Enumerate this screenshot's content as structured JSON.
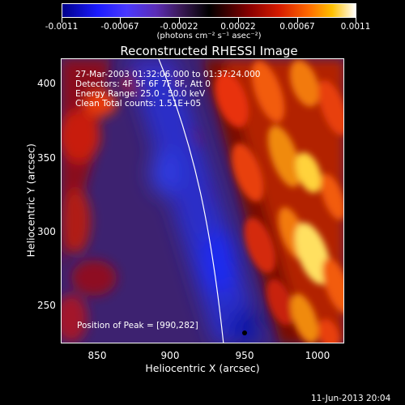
{
  "colorbar": {
    "tick_labels": [
      "-0.0011",
      "-0.00067",
      "-0.00022",
      "0.00022",
      "0.00067",
      "0.0011"
    ],
    "units": "(photons cm⁻² s⁻¹ asec⁻²)"
  },
  "title": "Reconstructed RHESSI Image",
  "info": {
    "time_range": "27-Mar-2003 01:32:06.000 to 01:37:24.000",
    "detectors": "Detectors: 4F 5F 6F 7F 8F, Att 0",
    "energy": "Energy Range: 25.0 - 50.0 keV",
    "method": "Clean     Total counts: 1.51E+05"
  },
  "peak_label": "Position of Peak = [990,282]",
  "axes": {
    "xlabel": "Heliocentric X (arcsec)",
    "ylabel": "Heliocentric Y (arcsec)",
    "xticks": [
      "850",
      "900",
      "950",
      "1000"
    ],
    "yticks": [
      "400",
      "350",
      "300",
      "250"
    ]
  },
  "timestamp": "11-Jun-2013 20:04",
  "colors": {
    "background": "#000000",
    "foreground": "#ffffff"
  }
}
